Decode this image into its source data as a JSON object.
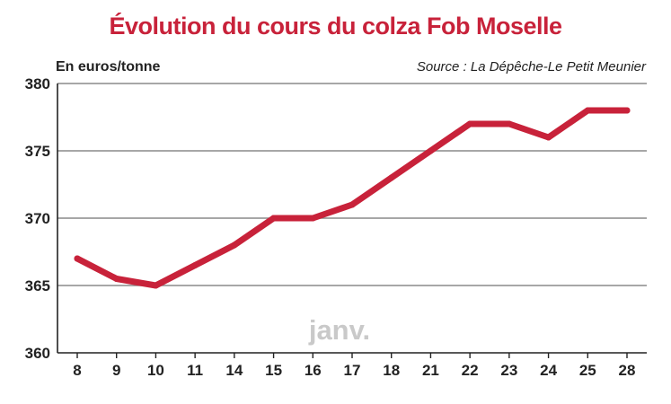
{
  "chart_data": {
    "type": "line",
    "title": "Évolution du cours du colza Fob Moselle",
    "ylabel": "En euros/tonne",
    "source": "Source : La Dépêche-Le Petit Meunier",
    "annotation": "janv.",
    "categories": [
      "8",
      "9",
      "10",
      "11",
      "14",
      "15",
      "16",
      "17",
      "18",
      "21",
      "22",
      "23",
      "24",
      "25",
      "28"
    ],
    "series": [
      {
        "values": [
          367,
          365.5,
          365,
          366.5,
          368,
          370,
          370,
          371,
          373,
          375,
          377,
          377,
          376,
          378,
          378
        ]
      }
    ],
    "yticks": [
      "380",
      "375",
      "370",
      "365",
      "360"
    ],
    "ylim": [
      360,
      380
    ],
    "grid": true,
    "colors": {
      "line": "#c8223a",
      "grid": "#8a8a8a",
      "title": "#c8223a",
      "annotation": "#c9c9c9"
    }
  }
}
